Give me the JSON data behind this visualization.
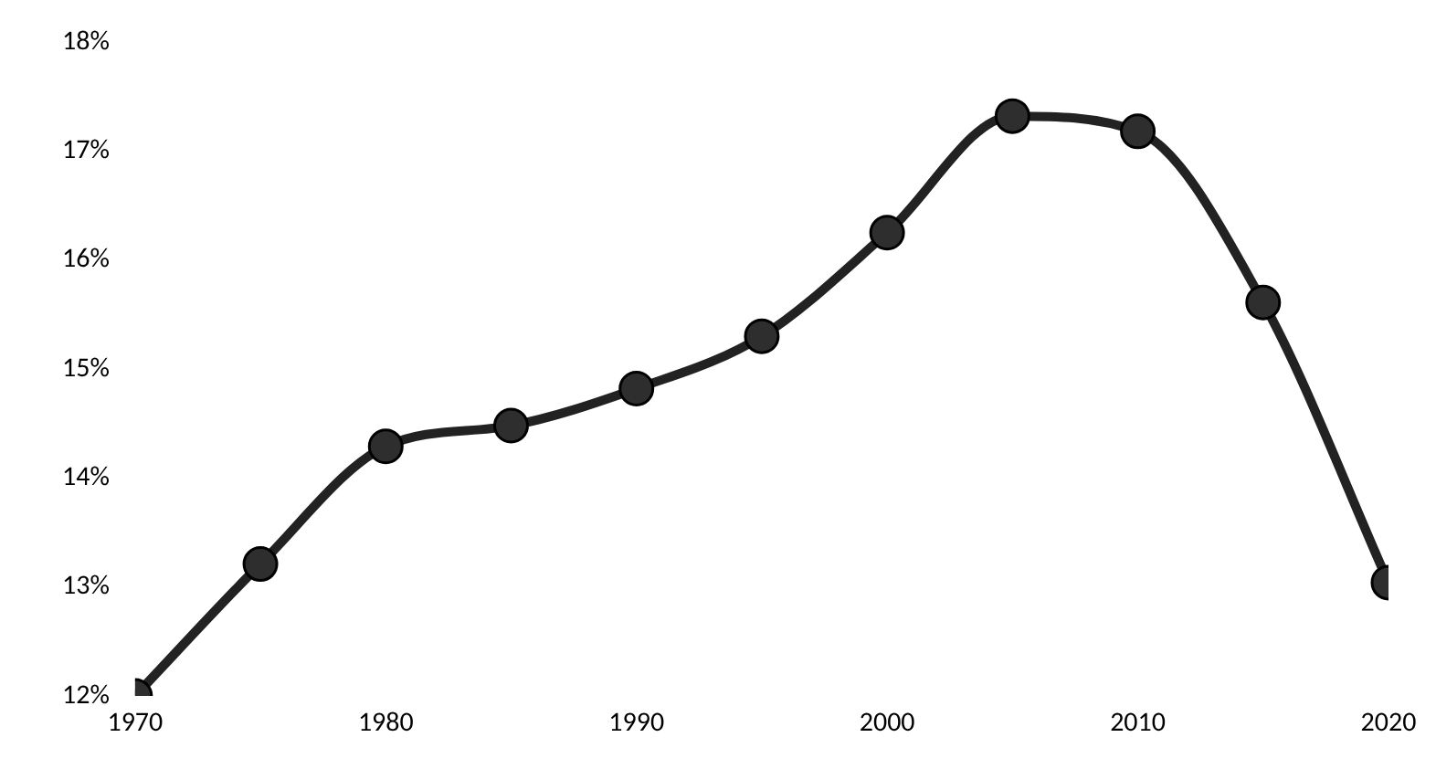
{
  "chart_data": {
    "type": "line",
    "x": [
      1970,
      1975,
      1980,
      1985,
      1990,
      1995,
      2000,
      2005,
      2010,
      2015,
      2020
    ],
    "series": [
      {
        "color": "#222222",
        "values": [
          12.0,
          13.21,
          14.29,
          14.48,
          14.82,
          15.3,
          16.25,
          17.32,
          17.18,
          15.61,
          13.04
        ]
      }
    ],
    "xlim": [
      1970,
      2020
    ],
    "xticks": [
      1970,
      1980,
      1990,
      2000,
      2010,
      2020
    ],
    "ylim": [
      12,
      18
    ],
    "yticks": [
      {
        "value": 12,
        "label": "12%"
      },
      {
        "value": 13,
        "label": "13%"
      },
      {
        "value": 14,
        "label": "14%"
      },
      {
        "value": 15,
        "label": "15%"
      },
      {
        "value": 16,
        "label": "16%"
      },
      {
        "value": 17,
        "label": "17%"
      },
      {
        "value": 18,
        "label": "18%"
      }
    ],
    "grid": false,
    "legend": false,
    "marker": "circle",
    "line_style": "solid"
  }
}
